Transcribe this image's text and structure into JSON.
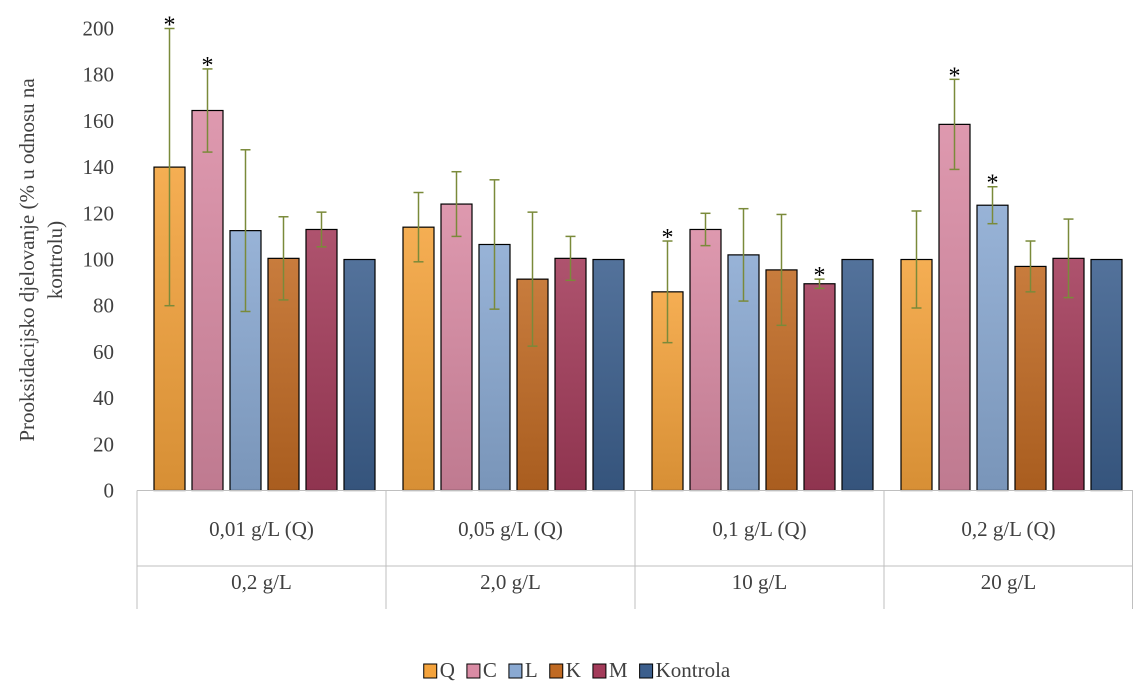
{
  "chart_data": {
    "type": "bar",
    "ylabel_lines": [
      "Prooksidacijsko  djelovanje  (%  u odnosu na",
      "kontrolu)"
    ],
    "ylim": [
      0,
      200
    ],
    "yticks": [
      0,
      20,
      40,
      60,
      80,
      100,
      120,
      140,
      160,
      180,
      200
    ],
    "yticks_labels": [
      "0",
      "20",
      "40",
      "60",
      "80",
      "100",
      "120",
      "140",
      "160",
      "180",
      "200"
    ],
    "grid": false,
    "legend_position": "bottom",
    "significance_marker": "*",
    "categories": [
      {
        "top": "0,01 g/L (Q)",
        "bottom": "0,2 g/L"
      },
      {
        "top": "0,05 g/L (Q)",
        "bottom": "2,0 g/L"
      },
      {
        "top": "0,1 g/L (Q)",
        "bottom": "10 g/L"
      },
      {
        "top": "0,2 g/L (Q)",
        "bottom": "20 g/L"
      }
    ],
    "series": [
      {
        "name": "Q",
        "color": "#f4a33c",
        "values": [
          140,
          114,
          86,
          100
        ],
        "err": [
          60,
          15,
          22,
          21
        ],
        "significant": [
          true,
          false,
          true,
          false
        ]
      },
      {
        "name": "C",
        "color": "#d98ba4",
        "values": [
          164.5,
          124,
          113,
          158.5
        ],
        "err": [
          18,
          14,
          7,
          19.5
        ],
        "significant": [
          true,
          false,
          false,
          true
        ]
      },
      {
        "name": "L",
        "color": "#8aa9d2",
        "values": [
          112.5,
          106.5,
          102,
          123.5
        ],
        "err": [
          35,
          28,
          20,
          8
        ],
        "significant": [
          false,
          false,
          false,
          true
        ]
      },
      {
        "name": "K",
        "color": "#c06a23",
        "values": [
          100.5,
          91.5,
          95.5,
          97
        ],
        "err": [
          18,
          29,
          24,
          11
        ],
        "significant": [
          false,
          false,
          false,
          false
        ]
      },
      {
        "name": "M",
        "color": "#a33b5a",
        "values": [
          113,
          100.5,
          89.5,
          100.5
        ],
        "err": [
          7.5,
          9.5,
          2,
          17
        ],
        "significant": [
          false,
          false,
          true,
          false
        ]
      },
      {
        "name": "Kontrola",
        "color": "#3c5f8d",
        "values": [
          100,
          100,
          100,
          100
        ],
        "err": [
          0,
          0,
          0,
          0
        ],
        "significant": [
          false,
          false,
          false,
          false
        ]
      }
    ]
  }
}
